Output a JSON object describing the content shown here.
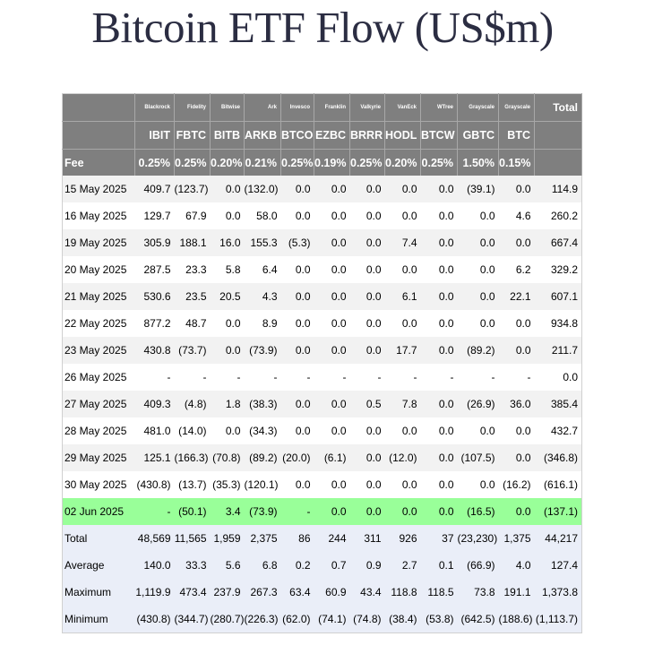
{
  "title": "Bitcoin ETF Flow (US$m)",
  "managers": [
    "Blackrock",
    "Fidelity",
    "Bitwise",
    "Ark",
    "Invesco",
    "Franklin",
    "Valkyrie",
    "VanEck",
    "WTree",
    "Grayscale",
    "Grayscale"
  ],
  "total_label": "Total",
  "tickers": [
    "IBIT",
    "FBTC",
    "BITB",
    "ARKB",
    "BTCO",
    "EZBC",
    "BRRR",
    "HODL",
    "BTCW",
    "GBTC",
    "BTC"
  ],
  "fee_label": "Fee",
  "fees": [
    "0.25%",
    "0.25%",
    "0.20%",
    "0.21%",
    "0.25%",
    "0.19%",
    "0.25%",
    "0.20%",
    "0.25%",
    "1.50%",
    "0.15%"
  ],
  "rows": [
    {
      "date": "15 May 2025",
      "values": [
        "409.7",
        "(123.7)",
        "0.0",
        "(132.0)",
        "0.0",
        "0.0",
        "0.0",
        "0.0",
        "0.0",
        "(39.1)",
        "0.0"
      ],
      "total": "114.9"
    },
    {
      "date": "16 May 2025",
      "values": [
        "129.7",
        "67.9",
        "0.0",
        "58.0",
        "0.0",
        "0.0",
        "0.0",
        "0.0",
        "0.0",
        "0.0",
        "4.6"
      ],
      "total": "260.2"
    },
    {
      "date": "19 May 2025",
      "values": [
        "305.9",
        "188.1",
        "16.0",
        "155.3",
        "(5.3)",
        "0.0",
        "0.0",
        "7.4",
        "0.0",
        "0.0",
        "0.0"
      ],
      "total": "667.4"
    },
    {
      "date": "20 May 2025",
      "values": [
        "287.5",
        "23.3",
        "5.8",
        "6.4",
        "0.0",
        "0.0",
        "0.0",
        "0.0",
        "0.0",
        "0.0",
        "6.2"
      ],
      "total": "329.2"
    },
    {
      "date": "21 May 2025",
      "values": [
        "530.6",
        "23.5",
        "20.5",
        "4.3",
        "0.0",
        "0.0",
        "0.0",
        "6.1",
        "0.0",
        "0.0",
        "22.1"
      ],
      "total": "607.1"
    },
    {
      "date": "22 May 2025",
      "values": [
        "877.2",
        "48.7",
        "0.0",
        "8.9",
        "0.0",
        "0.0",
        "0.0",
        "0.0",
        "0.0",
        "0.0",
        "0.0"
      ],
      "total": "934.8"
    },
    {
      "date": "23 May 2025",
      "values": [
        "430.8",
        "(73.7)",
        "0.0",
        "(73.9)",
        "0.0",
        "0.0",
        "0.0",
        "17.7",
        "0.0",
        "(89.2)",
        "0.0"
      ],
      "total": "211.7"
    },
    {
      "date": "26 May 2025",
      "values": [
        "-",
        "-",
        "-",
        "-",
        "-",
        "-",
        "-",
        "-",
        "-",
        "-",
        "-"
      ],
      "total": "0.0"
    },
    {
      "date": "27 May 2025",
      "values": [
        "409.3",
        "(4.8)",
        "1.8",
        "(38.3)",
        "0.0",
        "0.0",
        "0.5",
        "7.8",
        "0.0",
        "(26.9)",
        "36.0"
      ],
      "total": "385.4"
    },
    {
      "date": "28 May 2025",
      "values": [
        "481.0",
        "(14.0)",
        "0.0",
        "(34.3)",
        "0.0",
        "0.0",
        "0.0",
        "0.0",
        "0.0",
        "0.0",
        "0.0"
      ],
      "total": "432.7"
    },
    {
      "date": "29 May 2025",
      "values": [
        "125.1",
        "(166.3)",
        "(70.8)",
        "(89.2)",
        "(20.0)",
        "(6.1)",
        "0.0",
        "(12.0)",
        "0.0",
        "(107.5)",
        "0.0"
      ],
      "total": "(346.8)"
    },
    {
      "date": "30 May 2025",
      "values": [
        "(430.8)",
        "(13.7)",
        "(35.3)",
        "(120.1)",
        "0.0",
        "0.0",
        "0.0",
        "0.0",
        "0.0",
        "0.0",
        "(16.2)"
      ],
      "total": "(616.1)"
    },
    {
      "date": "02 Jun 2025",
      "values": [
        "-",
        "(50.1)",
        "3.4",
        "(73.9)",
        "-",
        "0.0",
        "0.0",
        "0.0",
        "0.0",
        "(16.5)",
        "0.0"
      ],
      "total": "(137.1)"
    }
  ],
  "summary": [
    {
      "label": "Total",
      "values": [
        "48,569",
        "11,565",
        "1,959",
        "2,375",
        "86",
        "244",
        "311",
        "926",
        "37",
        "(23,230)",
        "1,375"
      ],
      "total": "44,217"
    },
    {
      "label": "Average",
      "values": [
        "140.0",
        "33.3",
        "5.6",
        "6.8",
        "0.2",
        "0.7",
        "0.9",
        "2.7",
        "0.1",
        "(66.9)",
        "4.0"
      ],
      "total": "127.4"
    },
    {
      "label": "Maximum",
      "values": [
        "1,119.9",
        "473.4",
        "237.9",
        "267.3",
        "63.4",
        "60.9",
        "43.4",
        "118.8",
        "118.5",
        "73.8",
        "191.1"
      ],
      "total": "1,373.8"
    },
    {
      "label": "Minimum",
      "values": [
        "(430.8)",
        "(344.7)",
        "(280.7)",
        "(226.3)",
        "(62.0)",
        "(74.1)",
        "(74.8)",
        "(38.4)",
        "(53.8)",
        "(642.5)",
        "(188.6)"
      ],
      "total": "(1,113.7)"
    }
  ],
  "colors": {
    "header_bg": "#7f7f7f",
    "negative": "#e00000",
    "highlight_row": "#99ff99",
    "shaded_row": "#f2f2f2",
    "summary_bg": "#eaeef8"
  }
}
